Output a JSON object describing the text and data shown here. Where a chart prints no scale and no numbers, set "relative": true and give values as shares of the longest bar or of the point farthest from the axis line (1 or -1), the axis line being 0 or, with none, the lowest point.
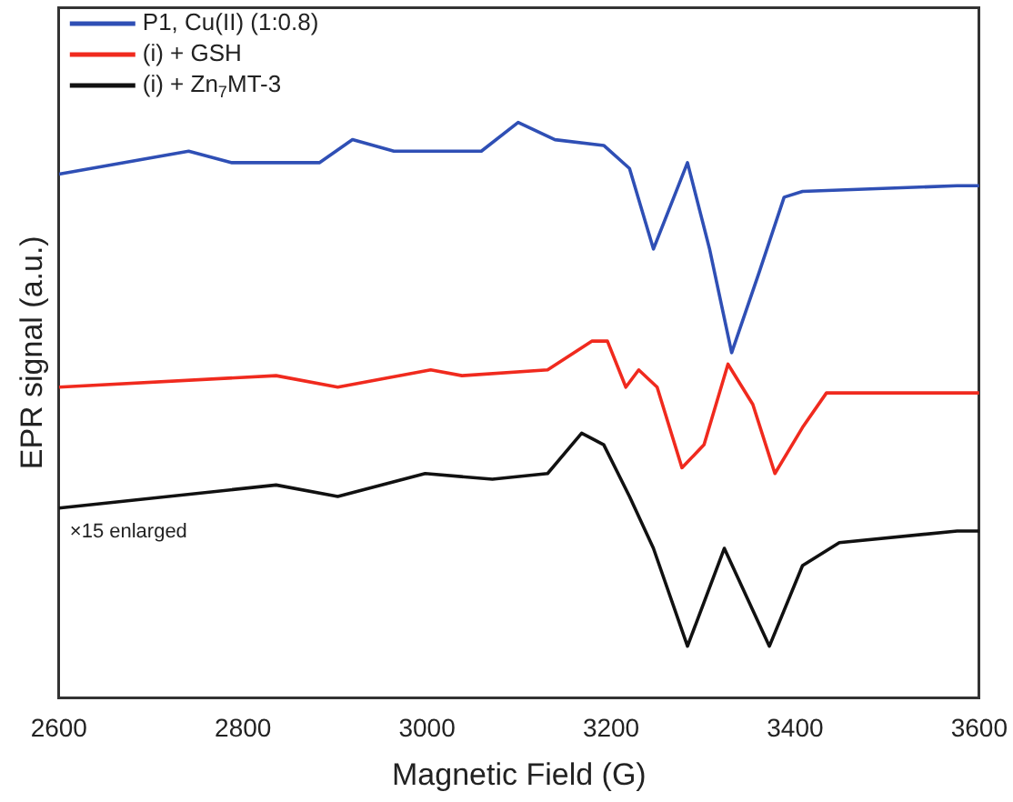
{
  "chart_data": {
    "type": "line",
    "xlabel": "Magnetic Field (G)",
    "ylabel": "EPR signal (a.u.)",
    "relative": true,
    "xlim": [
      2600,
      3600
    ],
    "xticks": [
      2600,
      2800,
      3000,
      3200,
      3400,
      3600
    ],
    "grid": false,
    "legend": "top left",
    "marker": "none",
    "line_style": "solid",
    "annotations": [
      "×15 enlarged"
    ],
    "series": [
      {
        "name": "P1, Cu(II) (1:0.8)",
        "color": "#2f4fb5",
        "type": "line",
        "x": [
          2600,
          2741,
          2788,
          2883,
          2919,
          2964,
          3059,
          3099,
          3139,
          3192,
          3220,
          3246,
          3283,
          3307,
          3331,
          3361,
          3388,
          3408,
          3576,
          3600
        ],
        "values": [
          0.91,
          0.95,
          0.93,
          0.93,
          0.97,
          0.95,
          0.95,
          1.0,
          0.97,
          0.96,
          0.92,
          0.78,
          0.93,
          0.78,
          0.6,
          0.74,
          0.87,
          0.88,
          0.89,
          0.89
        ]
      },
      {
        "name": "(i) + GSH",
        "color": "#f02a1e",
        "type": "line",
        "x": [
          2600,
          2836,
          2903,
          3004,
          3038,
          3131,
          3179,
          3196,
          3216,
          3230,
          3250,
          3277,
          3301,
          3327,
          3354,
          3378,
          3408,
          3434,
          3576,
          3600
        ],
        "values": [
          0.54,
          0.56,
          0.54,
          0.57,
          0.56,
          0.57,
          0.62,
          0.62,
          0.54,
          0.57,
          0.54,
          0.4,
          0.44,
          0.58,
          0.51,
          0.39,
          0.47,
          0.53,
          0.53,
          0.53
        ]
      },
      {
        "name": "(i) + Zn$_{7}$MT-3",
        "color": "#111111",
        "type": "line",
        "x": [
          2600,
          2836,
          2903,
          2998,
          3071,
          3131,
          3168,
          3192,
          3220,
          3246,
          3283,
          3323,
          3372,
          3408,
          3448,
          3576,
          3600
        ],
        "values": [
          0.33,
          0.37,
          0.35,
          0.39,
          0.38,
          0.39,
          0.46,
          0.44,
          0.35,
          0.26,
          0.09,
          0.26,
          0.09,
          0.23,
          0.27,
          0.29,
          0.29
        ]
      }
    ]
  }
}
